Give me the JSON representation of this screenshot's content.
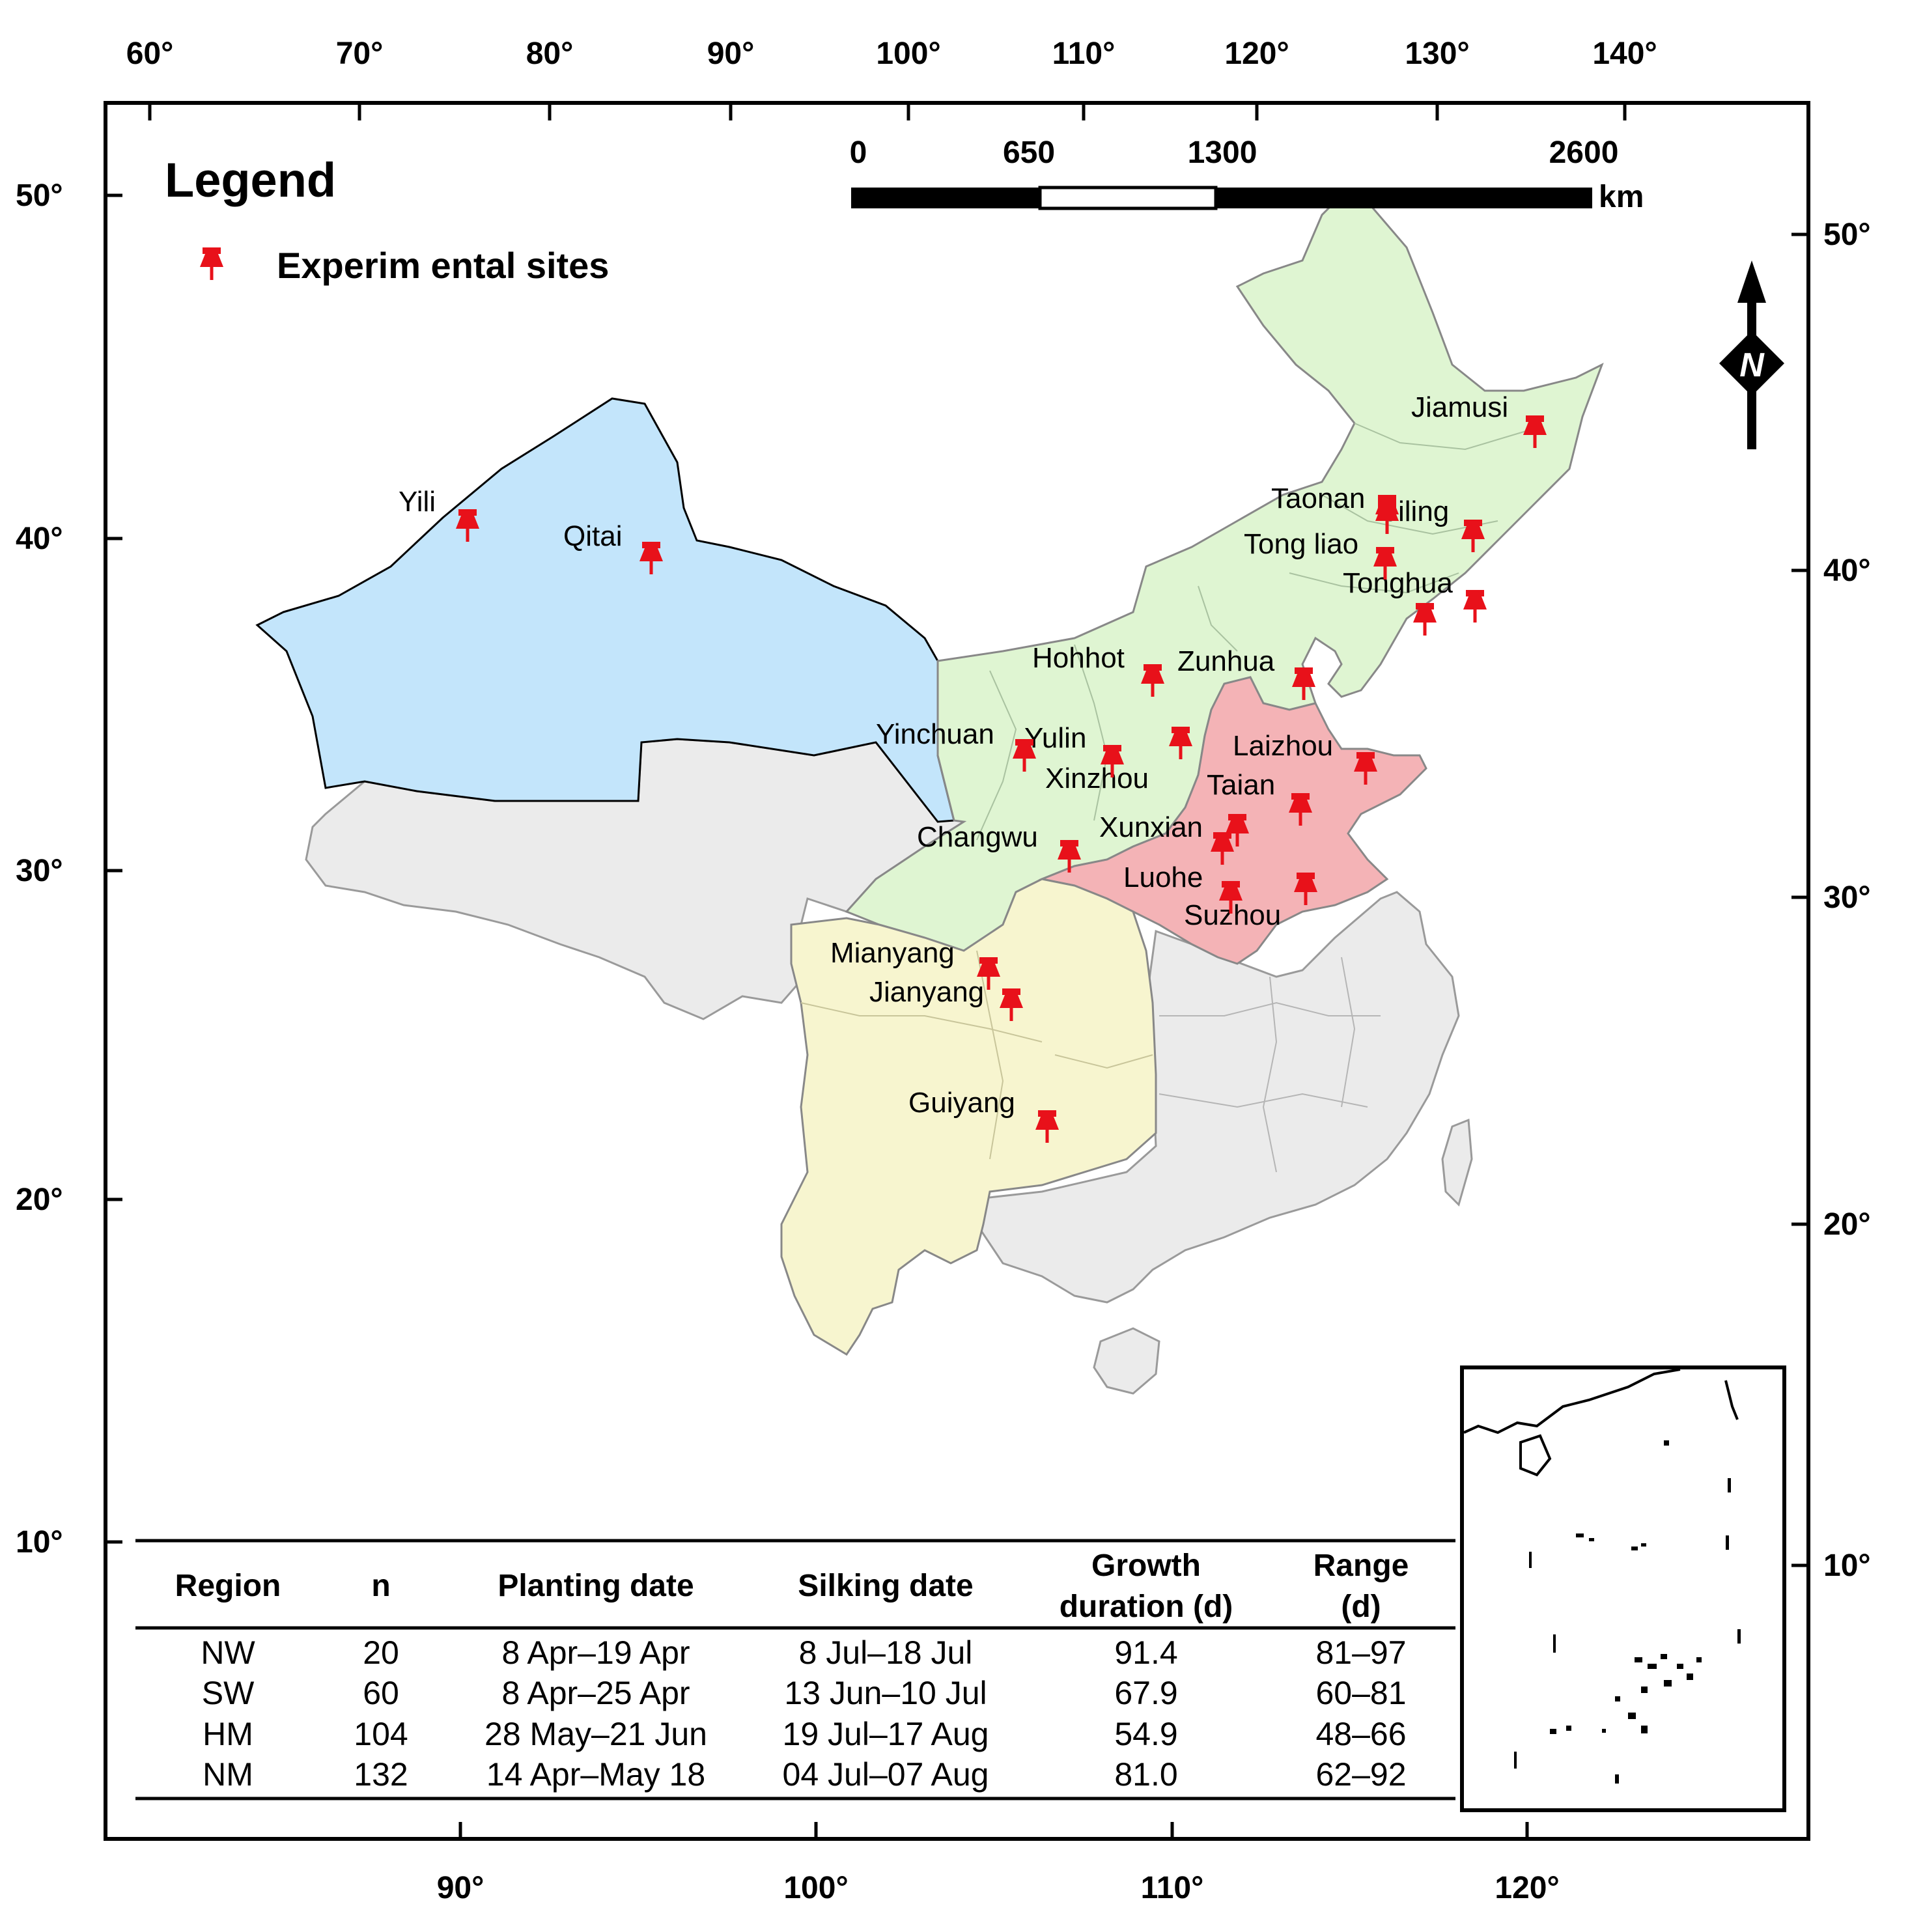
{
  "top_axis_labels": [
    "60°",
    "70°",
    "80°",
    "90°",
    "100°",
    "110°",
    "120°",
    "130°",
    "140°"
  ],
  "bottom_axis_labels": [
    "90°",
    "100°",
    "110°",
    "120°"
  ],
  "left_axis_labels": [
    "50°",
    "40°",
    "30°",
    "20°",
    "10°"
  ],
  "right_axis_labels": [
    "50°",
    "40°",
    "30°",
    "20°",
    "10°"
  ],
  "legend": {
    "title": "Legend",
    "item_label": "Experim ental sites",
    "marker_color": "#e8111a"
  },
  "scale_bar": {
    "ticks": [
      "0",
      "650",
      "1300",
      "2600"
    ],
    "unit": "km"
  },
  "north_arrow": {
    "letter": "N"
  },
  "region_colors": {
    "NW": "#c3e5fb",
    "NM": "#dff5d2",
    "HM": "#f4b3b6",
    "SW": "#f7f5cf",
    "other": "#ebebeb"
  },
  "sites": [
    "Jiamusi",
    "Taonan",
    "Jiling",
    "Tong liao",
    "Tonghua",
    "Yili",
    "Qitai",
    "Hohhot",
    "Zunhua",
    "Yinchuan",
    "Yulin",
    "Laizhou",
    "Xinzhou",
    "Taian",
    "Xunxian",
    "Changwu",
    "Luohe",
    "Suzhou",
    "Mianyang",
    "Jianyang",
    "Guiyang"
  ],
  "table": {
    "headers": [
      [
        "Region"
      ],
      [
        "n"
      ],
      [
        "Planting date"
      ],
      [
        "Silking date"
      ],
      [
        "Growth",
        "duration (d)"
      ],
      [
        "Range",
        "(d)"
      ]
    ],
    "rows": [
      [
        "NW",
        "20",
        "8 Apr–19 Apr",
        "8 Jul–18 Jul",
        "91.4",
        "81–97"
      ],
      [
        "SW",
        "60",
        "8 Apr–25 Apr",
        "13 Jun–10 Jul",
        "67.9",
        "60–81"
      ],
      [
        "HM",
        "104",
        "28 May–21 Jun",
        "19 Jul–17 Aug",
        "54.9",
        "48–66"
      ],
      [
        "NM",
        "132",
        "14 Apr–May 18",
        "04 Jul–07 Aug",
        "81.0",
        "62–92"
      ]
    ]
  }
}
